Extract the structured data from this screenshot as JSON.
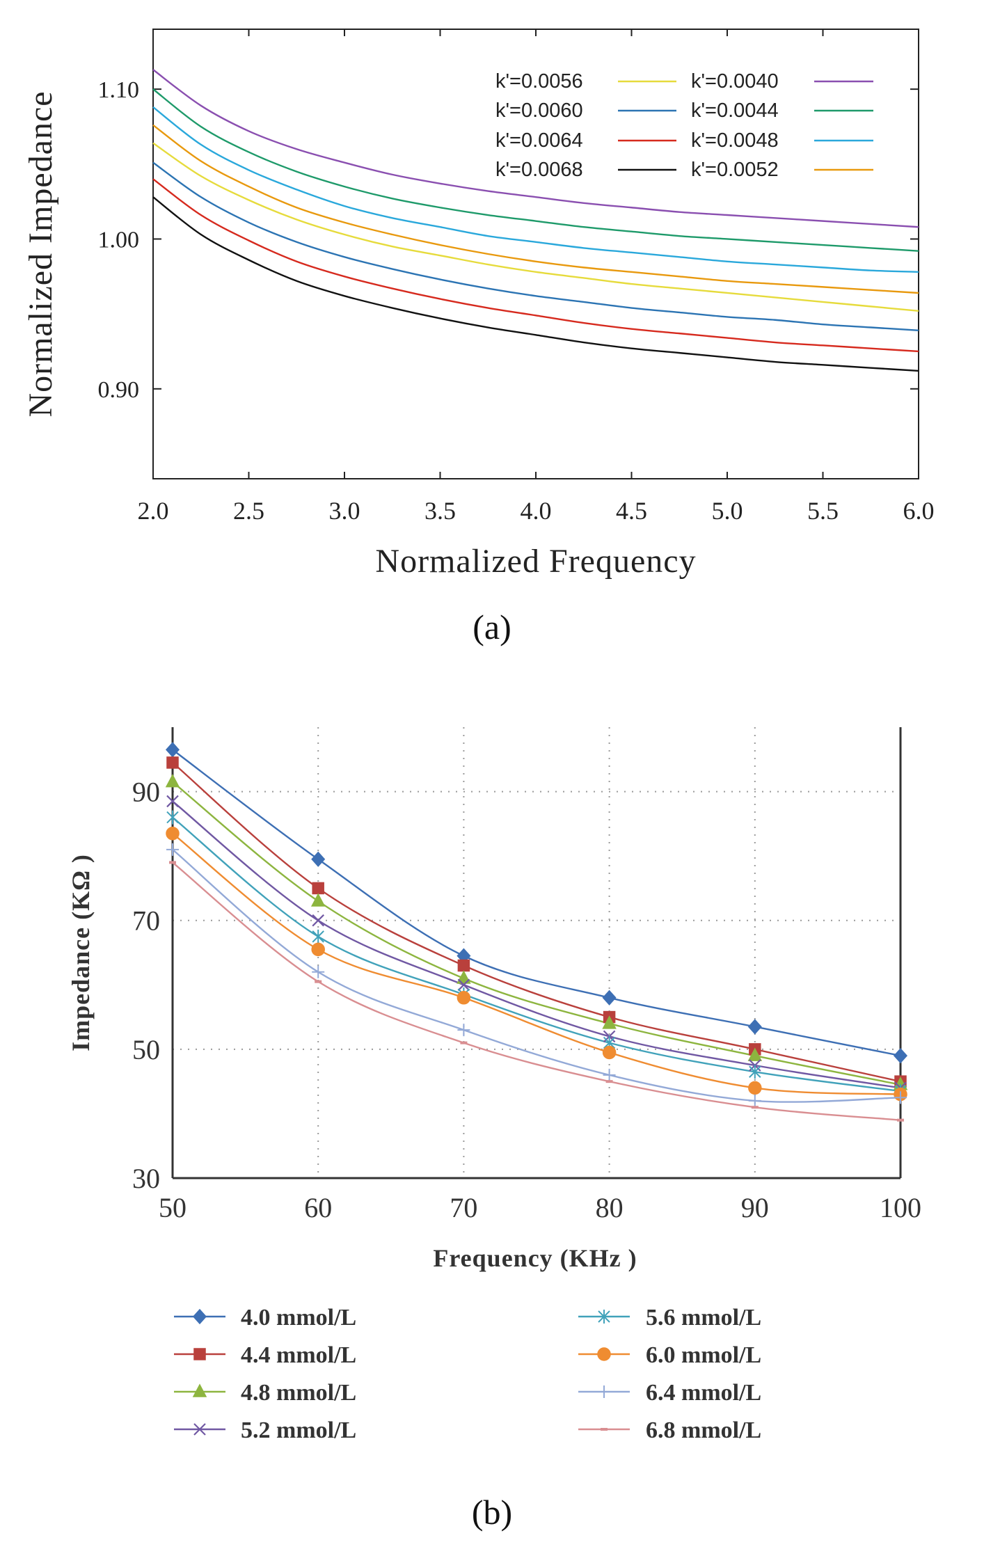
{
  "chart_data": [
    {
      "panel": "(a)",
      "type": "line",
      "title": "",
      "xlabel": "Normalized Frequency",
      "ylabel": "Normalized Impedance",
      "xlim": [
        2.0,
        6.0
      ],
      "ylim": [
        0.84,
        1.14
      ],
      "x_ticks": [
        "2.0",
        "2.5",
        "3.0",
        "3.5",
        "4.0",
        "4.5",
        "5.0",
        "5.5",
        "6.0"
      ],
      "y_ticks": [
        "0.90",
        "1.00",
        "1.10"
      ],
      "legend_position": "top-right",
      "x": [
        2.0,
        2.25,
        2.5,
        2.75,
        3.0,
        3.25,
        3.5,
        3.75,
        4.0,
        4.25,
        4.5,
        4.75,
        5.0,
        5.25,
        5.5,
        5.75,
        6.0
      ],
      "series": [
        {
          "name": "k'=0.0056",
          "color": "#e6db3c",
          "values": [
            1.064,
            1.042,
            1.026,
            1.013,
            1.003,
            0.995,
            0.989,
            0.983,
            0.978,
            0.974,
            0.97,
            0.967,
            0.964,
            0.961,
            0.958,
            0.955,
            0.952
          ]
        },
        {
          "name": "k'=0.0060",
          "color": "#2c74b3",
          "values": [
            1.051,
            1.028,
            1.011,
            0.998,
            0.988,
            0.98,
            0.973,
            0.967,
            0.962,
            0.958,
            0.954,
            0.951,
            0.948,
            0.946,
            0.943,
            0.941,
            0.939
          ]
        },
        {
          "name": "k'=0.0064",
          "color": "#d62a1e",
          "values": [
            1.04,
            1.016,
            0.999,
            0.985,
            0.975,
            0.967,
            0.96,
            0.954,
            0.949,
            0.944,
            0.94,
            0.937,
            0.934,
            0.931,
            0.929,
            0.927,
            0.925
          ]
        },
        {
          "name": "k'=0.0068",
          "color": "#111111",
          "values": [
            1.028,
            1.003,
            0.986,
            0.972,
            0.962,
            0.954,
            0.947,
            0.941,
            0.936,
            0.931,
            0.927,
            0.924,
            0.921,
            0.918,
            0.916,
            0.914,
            0.912
          ]
        },
        {
          "name": "k'=0.0040",
          "color": "#8a4fb0",
          "values": [
            1.113,
            1.089,
            1.072,
            1.06,
            1.051,
            1.043,
            1.037,
            1.032,
            1.028,
            1.024,
            1.021,
            1.018,
            1.016,
            1.014,
            1.012,
            1.01,
            1.008
          ]
        },
        {
          "name": "k'=0.0044",
          "color": "#1e9a6a",
          "values": [
            1.1,
            1.075,
            1.058,
            1.045,
            1.035,
            1.027,
            1.021,
            1.016,
            1.012,
            1.008,
            1.005,
            1.002,
            1.0,
            0.998,
            0.996,
            0.994,
            0.992
          ]
        },
        {
          "name": "k'=0.0048",
          "color": "#2aa8db",
          "values": [
            1.088,
            1.063,
            1.046,
            1.033,
            1.022,
            1.014,
            1.008,
            1.002,
            0.998,
            0.994,
            0.991,
            0.988,
            0.985,
            0.983,
            0.981,
            0.979,
            0.978
          ]
        },
        {
          "name": "k'=0.0052",
          "color": "#e8990e",
          "values": [
            1.076,
            1.052,
            1.035,
            1.021,
            1.011,
            1.003,
            0.996,
            0.99,
            0.985,
            0.981,
            0.978,
            0.975,
            0.972,
            0.97,
            0.968,
            0.966,
            0.964
          ]
        }
      ]
    },
    {
      "panel": "(b)",
      "type": "line",
      "title": "",
      "xlabel": "Frequency (KHz )",
      "ylabel": "Impedance (KΩ )",
      "xlim": [
        50,
        100
      ],
      "ylim": [
        30,
        100
      ],
      "x_ticks": [
        "50",
        "60",
        "70",
        "80",
        "90",
        "100"
      ],
      "y_ticks": [
        "30",
        "50",
        "70",
        "90"
      ],
      "grid": true,
      "legend_position": "bottom",
      "x": [
        50,
        60,
        70,
        80,
        90,
        100
      ],
      "series": [
        {
          "name": "4.0 mmol/L",
          "color": "#3d6fb4",
          "marker": "diamond",
          "values": [
            96.5,
            79.5,
            64.5,
            58.0,
            53.5,
            49.0
          ]
        },
        {
          "name": "4.4 mmol/L",
          "color": "#b9403c",
          "marker": "square",
          "values": [
            94.5,
            75.0,
            63.0,
            55.0,
            50.0,
            45.0
          ]
        },
        {
          "name": "4.8 mmol/L",
          "color": "#8db53f",
          "marker": "triangle",
          "values": [
            91.5,
            73.0,
            61.0,
            54.0,
            49.0,
            44.5
          ]
        },
        {
          "name": "5.2 mmol/L",
          "color": "#7058a3",
          "marker": "x",
          "values": [
            88.5,
            70.0,
            60.0,
            52.0,
            47.5,
            44.0
          ]
        },
        {
          "name": "5.6 mmol/L",
          "color": "#41a2ba",
          "marker": "star",
          "values": [
            86.0,
            67.5,
            58.5,
            51.0,
            46.5,
            43.5
          ]
        },
        {
          "name": "6.0 mmol/L",
          "color": "#ef8c31",
          "marker": "circle",
          "values": [
            83.5,
            65.5,
            58.0,
            49.5,
            44.0,
            43.0
          ]
        },
        {
          "name": "6.4 mmol/L",
          "color": "#93a9d7",
          "marker": "plus",
          "values": [
            81.0,
            62.0,
            53.0,
            46.0,
            42.0,
            42.5
          ]
        },
        {
          "name": "6.8 mmol/L",
          "color": "#d98e91",
          "marker": "dash",
          "values": [
            79.0,
            60.5,
            51.0,
            45.0,
            41.0,
            39.0
          ]
        }
      ]
    }
  ]
}
